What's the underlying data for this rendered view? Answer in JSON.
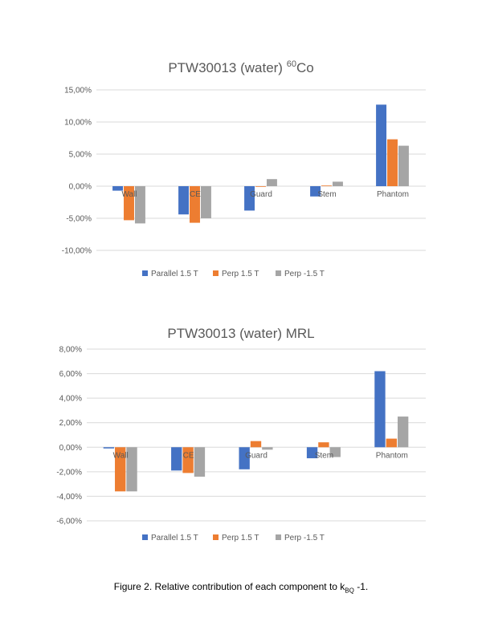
{
  "chart_data": [
    {
      "type": "bar",
      "title": "PTW30013 (water) ",
      "title_sup": "60",
      "title_suffix": "Co",
      "categories": [
        "Wall",
        "CE",
        "Guard",
        "Stem",
        "Phantom"
      ],
      "series": [
        {
          "name": "Parallel 1.5 T",
          "color": "#4472C4",
          "values": [
            -0.7,
            -4.4,
            -3.8,
            -1.6,
            12.7
          ]
        },
        {
          "name": "Perp 1.5 T",
          "color": "#ED7D31",
          "values": [
            -5.3,
            -5.7,
            -0.1,
            0.1,
            7.3
          ]
        },
        {
          "name": "Perp -1.5 T",
          "color": "#A5A5A5",
          "values": [
            -5.8,
            -5.0,
            1.1,
            0.7,
            6.3
          ]
        }
      ],
      "yticks": [
        "15,00%",
        "10,00%",
        "5,00%",
        "0,00%",
        "-5,00%",
        "-10,00%"
      ],
      "ylim": [
        -10,
        15
      ],
      "ystep": 5,
      "grid": true,
      "legend": "bottom"
    },
    {
      "type": "bar",
      "title": "PTW30013 (water) MRL",
      "title_sup": "",
      "title_suffix": "",
      "categories": [
        "Wall",
        "CE",
        "Guard",
        "Stem",
        "Phantom"
      ],
      "series": [
        {
          "name": "Parallel 1.5 T",
          "color": "#4472C4",
          "values": [
            -0.1,
            -1.9,
            -1.8,
            -0.9,
            6.2
          ]
        },
        {
          "name": "Perp 1.5 T",
          "color": "#ED7D31",
          "values": [
            -3.6,
            -2.1,
            0.5,
            0.4,
            0.7
          ]
        },
        {
          "name": "Perp -1.5 T",
          "color": "#A5A5A5",
          "values": [
            -3.6,
            -2.4,
            -0.2,
            -0.8,
            2.5
          ]
        }
      ],
      "yticks": [
        "8,00%",
        "6,00%",
        "4,00%",
        "2,00%",
        "0,00%",
        "-2,00%",
        "-4,00%",
        "-6,00%"
      ],
      "ylim": [
        -6,
        8
      ],
      "ystep": 2,
      "grid": true,
      "legend": "bottom"
    }
  ],
  "caption": {
    "text": "Figure 2. Relative contribution of each component to k",
    "sub": "BQ",
    "suffix": " -1."
  }
}
